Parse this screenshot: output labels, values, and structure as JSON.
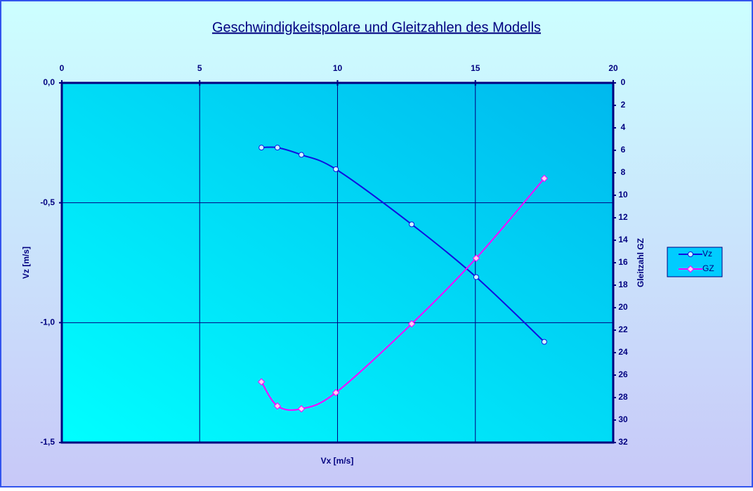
{
  "chart_data": {
    "type": "scatter",
    "title": "Geschwindigkeitspolare und Gleitzahlen des Modells",
    "x_label": "Vx [m/s]",
    "y_label": "Vz [m/s]",
    "y2_label": "Gleitzahl GZ",
    "x": [
      7.24,
      7.82,
      8.69,
      9.94,
      12.69,
      15.03,
      17.5
    ],
    "series": [
      {
        "name": "Vz",
        "color": "#1010e0",
        "values": [
          -0.27,
          -0.27,
          -0.3,
          -0.36,
          -0.59,
          -0.81,
          -1.08
        ]
      },
      {
        "name": "GZ",
        "color": "#ff00ff",
        "axis": "y2",
        "values": [
          26.6,
          28.75,
          29.0,
          27.56,
          21.44,
          15.6,
          8.5
        ]
      }
    ],
    "xlim": [
      0,
      20
    ],
    "xticks": [
      0,
      5,
      10,
      15,
      20
    ],
    "ylim": [
      -1.5,
      0
    ],
    "yticks": [
      {
        "value": 0,
        "label": "0,0"
      },
      {
        "value": -0.5,
        "label": "-0,5"
      },
      {
        "value": -1,
        "label": "-1,0"
      },
      {
        "value": -1.5,
        "label": "-1,5"
      }
    ],
    "y2lim": [
      32,
      0
    ],
    "y2ticks": [
      0,
      2,
      4,
      6,
      8,
      10,
      12,
      14,
      16,
      18,
      20,
      22,
      24,
      26,
      28,
      30,
      32
    ],
    "grid": true,
    "legend": "right"
  }
}
